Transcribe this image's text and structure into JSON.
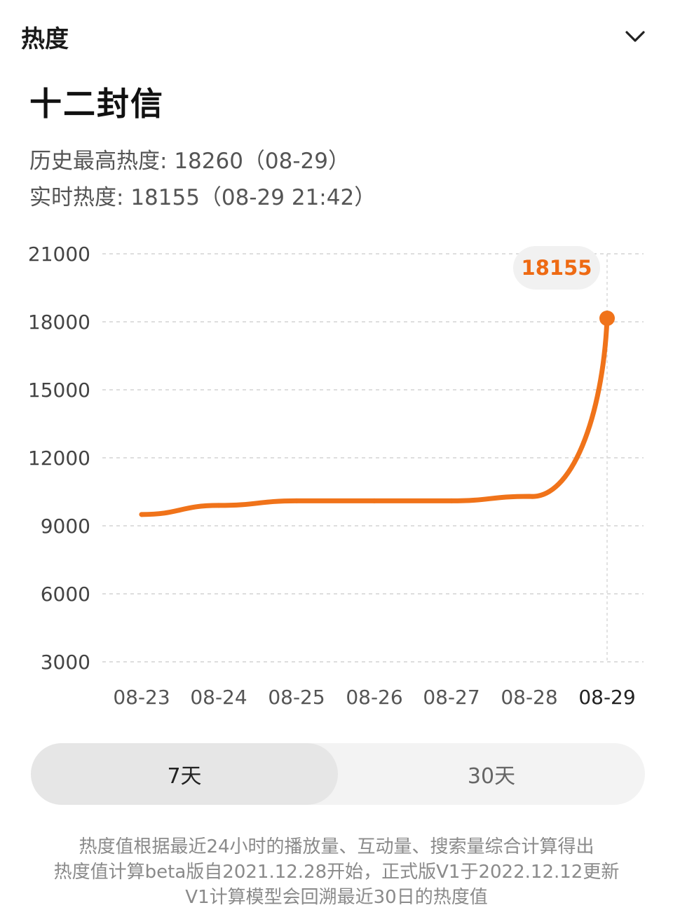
{
  "header": {
    "title": "热度",
    "collapse_icon": "chevron-down-icon"
  },
  "topic": {
    "title": "十二封信"
  },
  "stats": {
    "peak_label": "历史最高热度:",
    "peak_value": "18260（08-29）",
    "live_label": "实时热度:",
    "live_value": "18155（08-29 21:42）"
  },
  "colors": {
    "accent": "#f0731a",
    "grid": "#d4d4d4",
    "bubble_bg": "#f1f1f1"
  },
  "chart_data": {
    "type": "line",
    "title": "",
    "xlabel": "",
    "ylabel": "",
    "categories": [
      "08-23",
      "08-24",
      "08-25",
      "08-26",
      "08-27",
      "08-28",
      "08-29"
    ],
    "active_category": "08-29",
    "y_ticks": [
      3000,
      6000,
      9000,
      12000,
      15000,
      18000,
      21000
    ],
    "ylim": [
      3000,
      21000
    ],
    "grid": true,
    "series": [
      {
        "values": [
          9500,
          9900,
          10100,
          10100,
          10100,
          10300,
          18155
        ]
      }
    ],
    "highlight": {
      "category": "08-29",
      "value": 18155,
      "label": "18155"
    }
  },
  "range_switch": {
    "options": [
      {
        "label": "7天",
        "active": true
      },
      {
        "label": "30天",
        "active": false
      }
    ]
  },
  "footnote": {
    "lines": [
      "热度值根据最近24小时的播放量、互动量、搜索量综合计算得出",
      "热度值计算beta版自2021.12.28开始，正式版V1于2022.12.12更新",
      "V1计算模型会回溯最近30日的热度值"
    ]
  }
}
